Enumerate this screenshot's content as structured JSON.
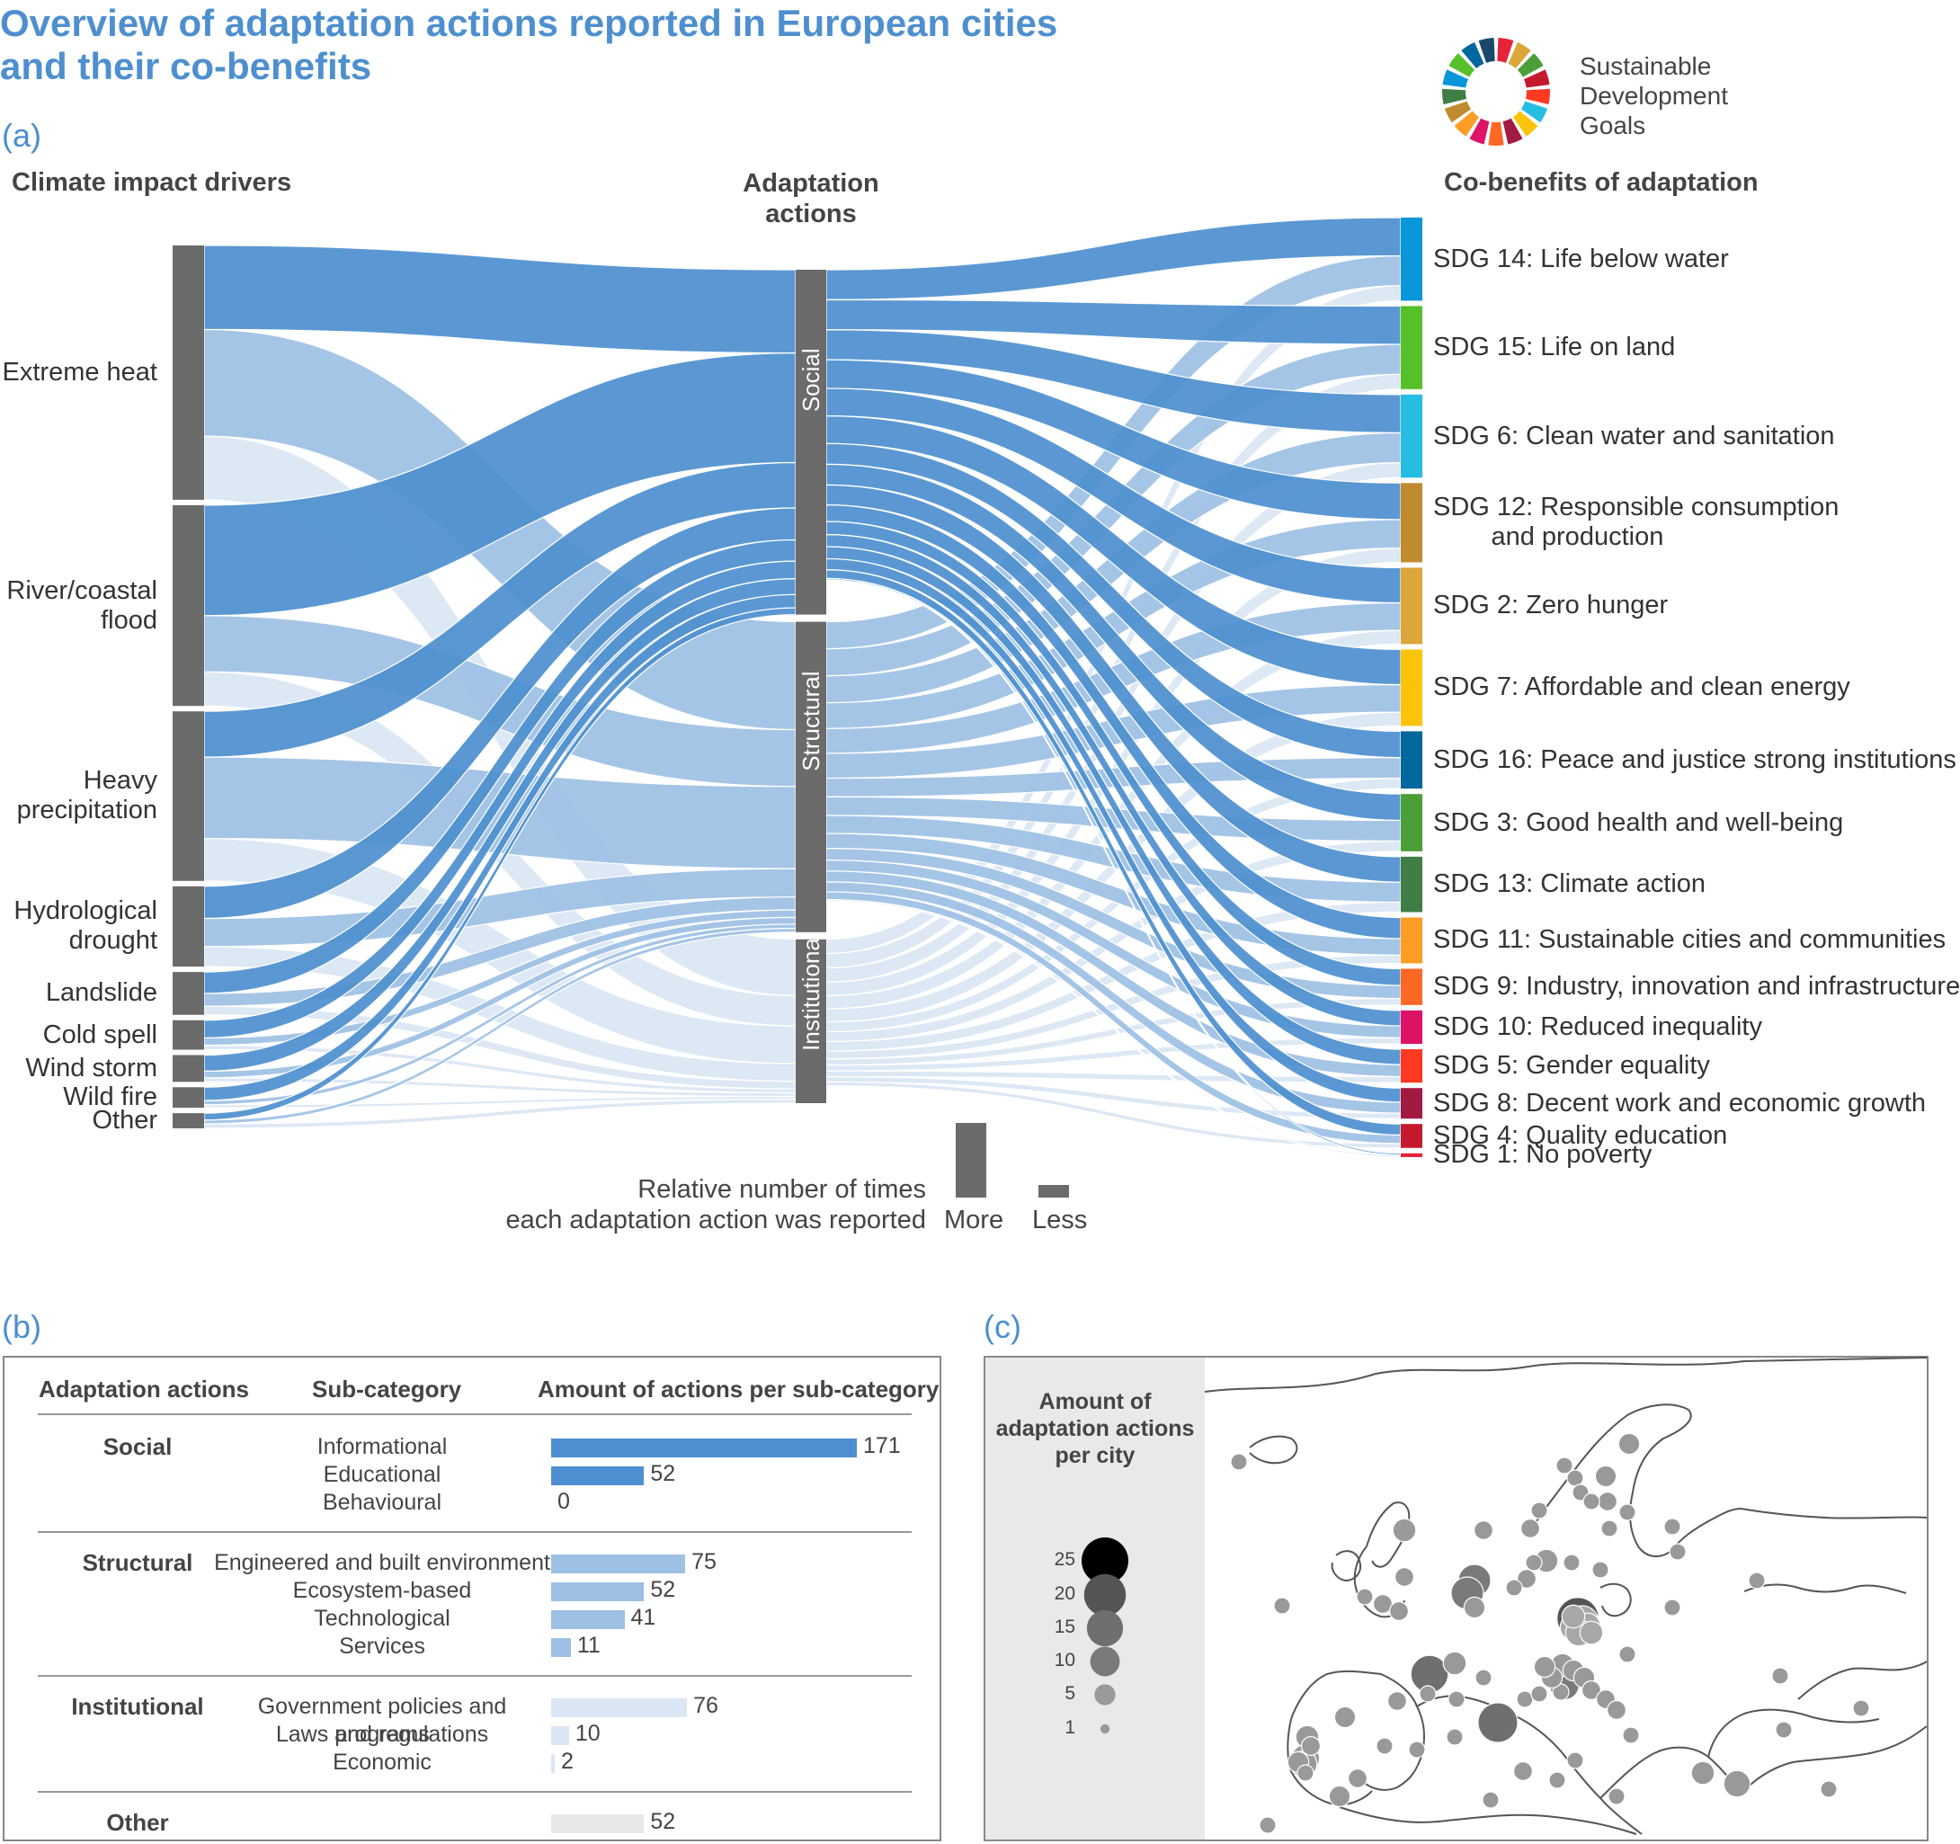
{
  "title_line1": "Overview of adaptation actions reported in European cities",
  "title_line2": "and their co-benefits",
  "panel_a": "(a)",
  "panel_b": "(b)",
  "panel_c": "(c)",
  "sdg_legend": [
    "Sustainable",
    "Development",
    "Goals"
  ],
  "sdg_wheel_colors": [
    "#e5243b",
    "#dda63a",
    "#4c9f38",
    "#c5192d",
    "#ff3a21",
    "#26bde2",
    "#fcc30b",
    "#a21942",
    "#fd6925",
    "#dd1367",
    "#fd9d24",
    "#bf8b2e",
    "#3f7e44",
    "#0a97d9",
    "#56c02b",
    "#00689d",
    "#19486a"
  ],
  "chart_data": {
    "type": "sankey",
    "headers": {
      "drivers": "Climate impact drivers",
      "actions": [
        "Adaptation",
        "actions"
      ],
      "cobenefits": "Co-benefits of adaptation"
    },
    "drivers": [
      {
        "label": [
          "Extreme heat"
        ],
        "share": 0.285
      },
      {
        "label": [
          "River/coastal",
          "flood"
        ],
        "share": 0.225
      },
      {
        "label": [
          "Heavy",
          "precipitation"
        ],
        "share": 0.19
      },
      {
        "label": [
          "Hydrological",
          "drought"
        ],
        "share": 0.09
      },
      {
        "label": [
          "Landslide"
        ],
        "share": 0.048
      },
      {
        "label": [
          "Cold spell"
        ],
        "share": 0.033
      },
      {
        "label": [
          "Wind storm"
        ],
        "share": 0.03
      },
      {
        "label": [
          "Wild fire"
        ],
        "share": 0.023
      },
      {
        "label": [
          "Other"
        ],
        "share": 0.017
      }
    ],
    "actions": [
      {
        "label": "Social",
        "share": 0.4,
        "color": "#4d8fcf"
      },
      {
        "label": "Structural",
        "share": 0.36,
        "color": "#9dc0e4"
      },
      {
        "label": "Institutional",
        "share": 0.19,
        "color": "#dae6f4"
      }
    ],
    "cobenefits": [
      {
        "label": "SDG 14: Life below water",
        "color": "#0a97d9",
        "share": 0.087
      },
      {
        "label": "SDG 15: Life on land",
        "color": "#56c02b",
        "share": 0.087
      },
      {
        "label": "SDG 6: Clean water and sanitation",
        "color": "#26bde2",
        "share": 0.087
      },
      {
        "label": "SDG 12: Responsible consumption\n        and production",
        "color": "#bf8b2e",
        "share": 0.083
      },
      {
        "label": "SDG 2: Zero hunger",
        "color": "#dda63a",
        "share": 0.08
      },
      {
        "label": "SDG 7: Affordable and clean energy",
        "color": "#fcc30b",
        "share": 0.08
      },
      {
        "label": "SDG 16: Peace and justice strong institutions",
        "color": "#00689d",
        "share": 0.06
      },
      {
        "label": "SDG 3: Good health and well-being",
        "color": "#4c9f38",
        "share": 0.06
      },
      {
        "label": "SDG 13: Climate action",
        "color": "#3f7e44",
        "share": 0.058
      },
      {
        "label": "SDG 11: Sustainable cities and communities",
        "color": "#fd9d24",
        "share": 0.048
      },
      {
        "label": "SDG 9: Industry, innovation and infrastructure",
        "color": "#fd6925",
        "share": 0.038
      },
      {
        "label": "SDG 10: Reduced inequality",
        "color": "#dd1367",
        "share": 0.035
      },
      {
        "label": "SDG 5: Gender equality",
        "color": "#ff3a21",
        "share": 0.035
      },
      {
        "label": "SDG 8: Decent work and economic growth",
        "color": "#a21942",
        "share": 0.032
      },
      {
        "label": "SDG 4: Quality education",
        "color": "#c5192d",
        "share": 0.025
      },
      {
        "label": "SDG 1: No poverty",
        "color": "#e5243b",
        "share": 0.004
      }
    ],
    "size_legend": {
      "title": [
        "Relative number of times",
        "each adaptation action was reported"
      ],
      "more": "More",
      "less": "Less"
    }
  },
  "table": {
    "headers": [
      "Adaptation actions",
      "Sub-category",
      "Amount of actions per sub-category"
    ],
    "groups": [
      {
        "name": "Social",
        "color": "#4d8fcf",
        "rows": [
          {
            "sub": "Informational",
            "value": 171
          },
          {
            "sub": "Educational",
            "value": 52
          },
          {
            "sub": "Behavioural",
            "value": 0
          }
        ]
      },
      {
        "name": "Structural",
        "color": "#9dc0e4",
        "rows": [
          {
            "sub": "Engineered and built environment",
            "value": 75
          },
          {
            "sub": "Ecosystem-based",
            "value": 52
          },
          {
            "sub": "Technological",
            "value": 41
          },
          {
            "sub": "Services",
            "value": 11
          }
        ]
      },
      {
        "name": "Institutional",
        "color": "#dae6f4",
        "rows": [
          {
            "sub": "Government policies and programs",
            "value": 76
          },
          {
            "sub": "Laws and regulations",
            "value": 10
          },
          {
            "sub": "Economic",
            "value": 2
          }
        ]
      },
      {
        "name": "Other",
        "color": "#e8e8e8",
        "rows": [
          {
            "sub": "",
            "value": 52
          }
        ]
      }
    ]
  },
  "map": {
    "legend_title": [
      "Amount of",
      "adaptation actions",
      "per city"
    ],
    "legend_values": [
      25,
      20,
      15,
      10,
      5,
      1
    ]
  }
}
